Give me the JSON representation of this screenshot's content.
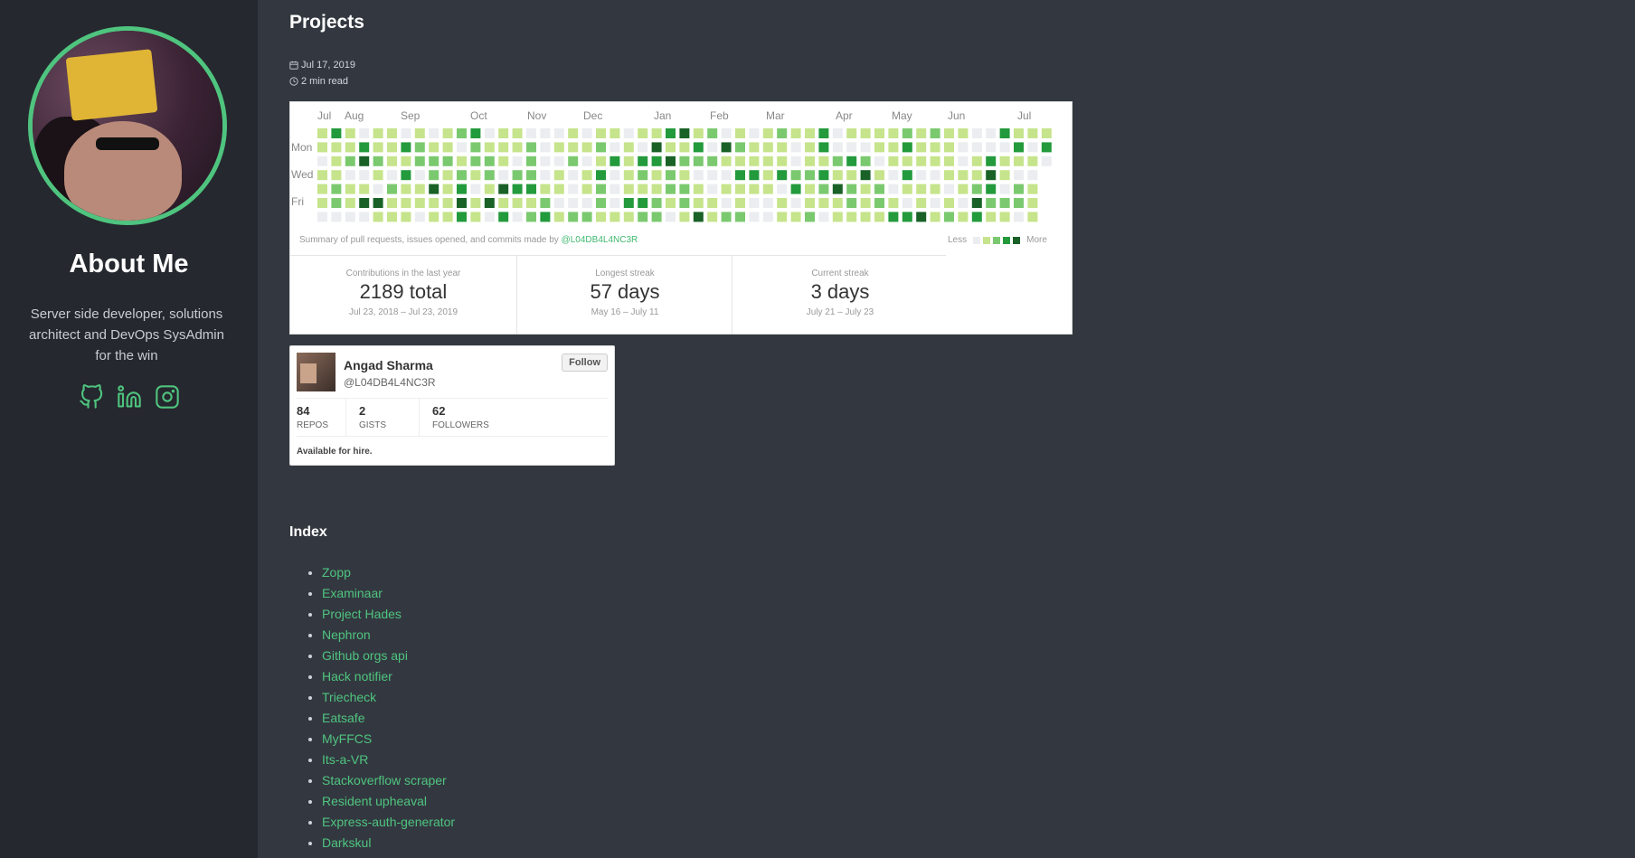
{
  "sidebar": {
    "title": "About Me",
    "description": "Server side developer, solutions architect and DevOps SysAdmin for the win",
    "socials": [
      {
        "icon": "github-icon"
      },
      {
        "icon": "linkedin-icon"
      },
      {
        "icon": "instagram-icon"
      }
    ],
    "accent_color": "#4fc47f"
  },
  "post": {
    "title": "Projects",
    "date": "Jul 17, 2019",
    "read_time": "2 min read"
  },
  "contributions": {
    "months": [
      "Jul",
      "Aug",
      "Sep",
      "Oct",
      "Nov",
      "Dec",
      "Jan",
      "Feb",
      "Mar",
      "Apr",
      "May",
      "Jun",
      "Jul"
    ],
    "days": [
      "Mon",
      "Wed",
      "Fri"
    ],
    "summary_prefix": "Summary of pull requests, issues opened, and commits made by",
    "summary_user": "@L04DB4L4NC3R",
    "legend_less": "Less",
    "legend_more": "More",
    "level_colors": [
      "#ebedf0",
      "#c6e48b",
      "#7bc96f",
      "#239a3b",
      "#196127"
    ],
    "stats": [
      {
        "label": "Contributions in the last year",
        "value": "2189 total",
        "range": "Jul 23, 2018 – Jul 23, 2019"
      },
      {
        "label": "Longest streak",
        "value": "57 days",
        "range": "May 16 – July 11"
      },
      {
        "label": "Current streak",
        "value": "3 days",
        "range": "July 21 – July 23"
      }
    ]
  },
  "profile": {
    "name": "Angad Sharma",
    "handle": "@L04DB4L4NC3R",
    "follow_label": "Follow",
    "stats": [
      {
        "count": "84",
        "label": "REPOS"
      },
      {
        "count": "2",
        "label": "GISTS"
      },
      {
        "count": "62",
        "label": "FOLLOWERS"
      }
    ],
    "bio": "Available for hire."
  },
  "index": {
    "title": "Index",
    "items": [
      "Zopp",
      "Examinaar",
      "Project Hades",
      "Nephron",
      "Github orgs api",
      "Hack notifier",
      "Triecheck",
      "Eatsafe",
      "MyFFCS",
      "Its-a-VR",
      "Stackoverflow scraper",
      "Resident upheaval",
      "Express-auth-generator",
      "Darkskul"
    ]
  }
}
